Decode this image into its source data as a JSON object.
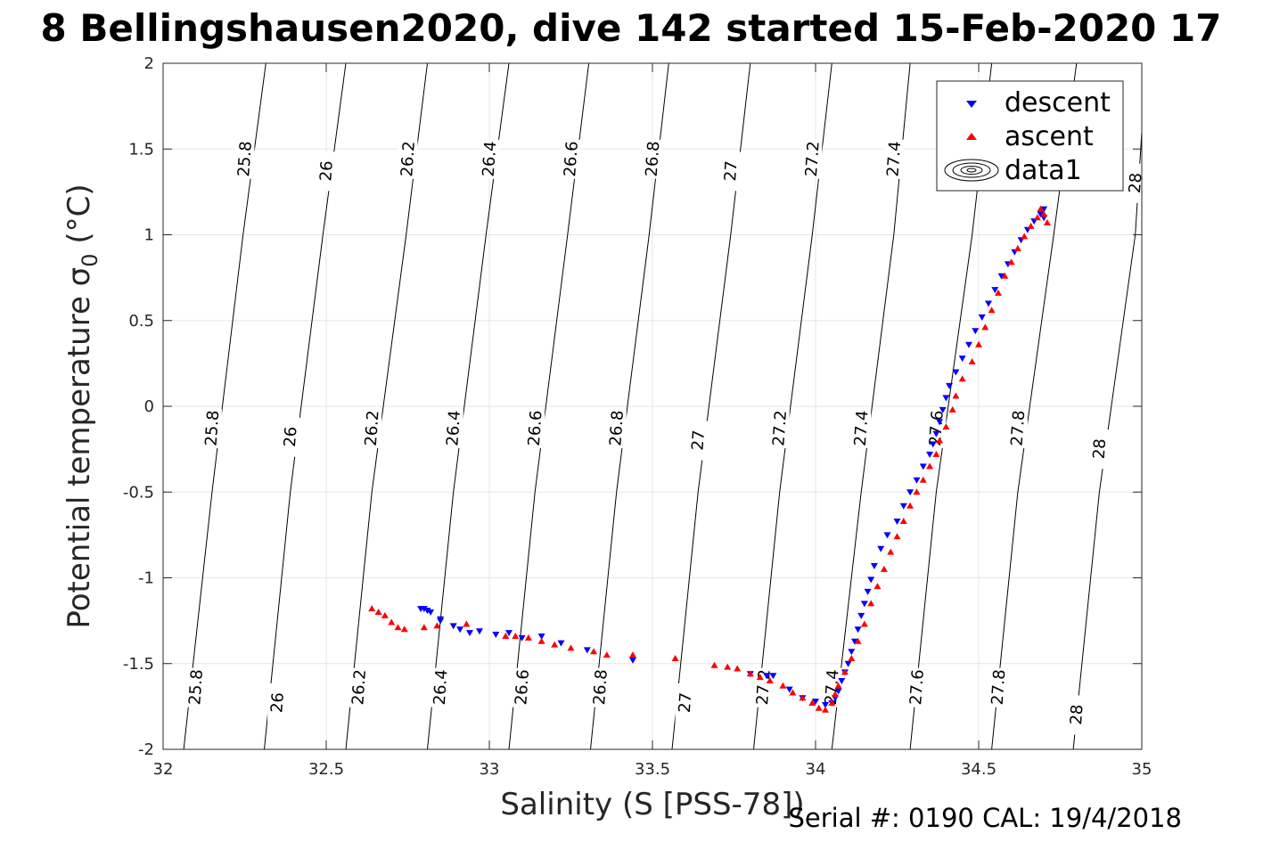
{
  "chart_data": {
    "type": "scatter",
    "title": "8 Bellingshausen2020, dive 142 started 15-Feb-2020 17",
    "xlabel": "Salinity (S [PSS-78])",
    "ylabel": "Potential temperature σ",
    "ylabel_subscript": "0",
    "ylabel_unit": " (°C)",
    "xlim": [
      32,
      35
    ],
    "ylim": [
      -2,
      2
    ],
    "x_ticks": [
      32,
      32.5,
      33,
      33.5,
      34,
      34.5,
      35
    ],
    "x_tick_labels": [
      "32",
      "32.5",
      "33",
      "33.5",
      "34",
      "34.5",
      "35"
    ],
    "y_ticks": [
      -2,
      -1.5,
      -1,
      -0.5,
      0,
      0.5,
      1,
      1.5,
      2
    ],
    "y_tick_labels": [
      "-2",
      "-1.5",
      "-1",
      "-0.5",
      "0",
      "0.5",
      "1",
      "1.5",
      "2"
    ],
    "grid": true,
    "legend_placement": "top-right",
    "legend": [
      "descent",
      "ascent",
      "data1"
    ],
    "density_contours": {
      "series_name": "data1",
      "color": "#000000",
      "levels": [
        "25.8",
        "26",
        "26.2",
        "26.4",
        "26.6",
        "26.8",
        "27",
        "27.2",
        "27.4",
        "27.6",
        "27.8",
        "28"
      ],
      "lines": [
        {
          "level": "25.8",
          "points": [
            [
              32.063,
              -2
            ],
            [
              32.15,
              -0.5
            ],
            [
              32.245,
              1.0
            ],
            [
              32.315,
              2
            ]
          ]
        },
        {
          "level": "26",
          "points": [
            [
              32.31,
              -2
            ],
            [
              32.39,
              -0.5
            ],
            [
              32.49,
              1.0
            ],
            [
              32.56,
              2
            ]
          ]
        },
        {
          "level": "26.2",
          "points": [
            [
              32.56,
              -2
            ],
            [
              32.64,
              -0.5
            ],
            [
              32.745,
              1.0
            ],
            [
              32.81,
              2
            ]
          ]
        },
        {
          "level": "26.4",
          "points": [
            [
              32.81,
              -2
            ],
            [
              32.89,
              -0.5
            ],
            [
              32.99,
              1.0
            ],
            [
              33.06,
              2
            ]
          ]
        },
        {
          "level": "26.6",
          "points": [
            [
              33.06,
              -2
            ],
            [
              33.14,
              -0.5
            ],
            [
              33.24,
              1.0
            ],
            [
              33.305,
              2
            ]
          ]
        },
        {
          "level": "26.8",
          "points": [
            [
              33.31,
              -2
            ],
            [
              33.39,
              -0.5
            ],
            [
              33.49,
              1.0
            ],
            [
              33.55,
              2
            ]
          ]
        },
        {
          "level": "27",
          "points": [
            [
              33.56,
              -2
            ],
            [
              33.64,
              -0.5
            ],
            [
              33.74,
              1.0
            ],
            [
              33.8,
              2
            ]
          ]
        },
        {
          "level": "27.2",
          "points": [
            [
              33.81,
              -2
            ],
            [
              33.89,
              -0.5
            ],
            [
              33.99,
              1.0
            ],
            [
              34.05,
              2
            ]
          ]
        },
        {
          "level": "27.4",
          "points": [
            [
              34.05,
              -2
            ],
            [
              34.14,
              -0.5
            ],
            [
              34.24,
              1.0
            ],
            [
              34.29,
              2
            ]
          ]
        },
        {
          "level": "27.6",
          "points": [
            [
              34.29,
              -2
            ],
            [
              34.37,
              -0.5
            ],
            [
              34.48,
              1.0
            ],
            [
              34.54,
              2
            ]
          ]
        },
        {
          "level": "27.8",
          "points": [
            [
              34.54,
              -2
            ],
            [
              34.62,
              -0.5
            ],
            [
              34.73,
              1.0
            ],
            [
              34.8,
              2
            ]
          ]
        },
        {
          "level": "28",
          "points": [
            [
              34.79,
              -2
            ],
            [
              34.87,
              -0.5
            ],
            [
              34.98,
              1.0
            ],
            [
              35,
              1.6
            ]
          ]
        }
      ],
      "labels": [
        {
          "text": "25.8",
          "s": 32.1,
          "t": -1.64
        },
        {
          "text": "25.8",
          "s": 32.15,
          "t": -0.13
        },
        {
          "text": "25.8",
          "s": 32.25,
          "t": 1.44
        },
        {
          "text": "26",
          "s": 32.35,
          "t": -1.73
        },
        {
          "text": "26",
          "s": 32.39,
          "t": -0.18
        },
        {
          "text": "26",
          "s": 32.5,
          "t": 1.37
        },
        {
          "text": "26.2",
          "s": 32.6,
          "t": -1.64
        },
        {
          "text": "26.2",
          "s": 32.64,
          "t": -0.13
        },
        {
          "text": "26.2",
          "s": 32.75,
          "t": 1.44
        },
        {
          "text": "26.4",
          "s": 32.85,
          "t": -1.64
        },
        {
          "text": "26.4",
          "s": 32.89,
          "t": -0.13
        },
        {
          "text": "26.4",
          "s": 33,
          "t": 1.44
        },
        {
          "text": "26.6",
          "s": 33.1,
          "t": -1.64
        },
        {
          "text": "26.6",
          "s": 33.14,
          "t": -0.13
        },
        {
          "text": "26.6",
          "s": 33.25,
          "t": 1.44
        },
        {
          "text": "26.8",
          "s": 33.34,
          "t": -1.64
        },
        {
          "text": "26.8",
          "s": 33.39,
          "t": -0.13
        },
        {
          "text": "26.8",
          "s": 33.5,
          "t": 1.44
        },
        {
          "text": "27",
          "s": 33.6,
          "t": -1.73
        },
        {
          "text": "27",
          "s": 33.64,
          "t": -0.2
        },
        {
          "text": "27",
          "s": 33.74,
          "t": 1.37
        },
        {
          "text": "27.2",
          "s": 33.84,
          "t": -1.64
        },
        {
          "text": "27.2",
          "s": 33.89,
          "t": -0.13
        },
        {
          "text": "27.2",
          "s": 33.99,
          "t": 1.44
        },
        {
          "text": "27.4",
          "s": 34.05,
          "t": -1.64
        },
        {
          "text": "27.4",
          "s": 34.14,
          "t": -0.13
        },
        {
          "text": "27.4",
          "s": 34.24,
          "t": 1.44
        },
        {
          "text": "27.6",
          "s": 34.31,
          "t": -1.64
        },
        {
          "text": "27.6",
          "s": 34.37,
          "t": -0.13
        },
        {
          "text": "27.8",
          "s": 34.56,
          "t": -1.64
        },
        {
          "text": "27.8",
          "s": 34.62,
          "t": -0.13
        },
        {
          "text": "28",
          "s": 34.8,
          "t": -1.8
        },
        {
          "text": "28",
          "s": 34.87,
          "t": -0.25
        },
        {
          "text": "28",
          "s": 34.98,
          "t": 1.3
        }
      ]
    },
    "series": [
      {
        "name": "descent",
        "marker": "triangle-down",
        "color": "#0000ff",
        "points": [
          [
            32.79,
            -1.18
          ],
          [
            32.8,
            -1.18
          ],
          [
            32.81,
            -1.19
          ],
          [
            32.82,
            -1.2
          ],
          [
            32.85,
            -1.24
          ],
          [
            32.85,
            -1.25
          ],
          [
            32.89,
            -1.28
          ],
          [
            32.91,
            -1.3
          ],
          [
            32.94,
            -1.32
          ],
          [
            32.97,
            -1.31
          ],
          [
            33.02,
            -1.33
          ],
          [
            33.06,
            -1.32
          ],
          [
            33.1,
            -1.35
          ],
          [
            33.16,
            -1.34
          ],
          [
            33.22,
            -1.38
          ],
          [
            33.3,
            -1.42
          ],
          [
            33.44,
            -1.48
          ],
          [
            33.8,
            -1.56
          ],
          [
            33.85,
            -1.57
          ],
          [
            33.87,
            -1.57
          ],
          [
            33.92,
            -1.65
          ],
          [
            33.96,
            -1.7
          ],
          [
            34.0,
            -1.72
          ],
          [
            34.03,
            -1.74
          ],
          [
            34.05,
            -1.73
          ],
          [
            34.06,
            -1.7
          ],
          [
            34.07,
            -1.66
          ],
          [
            34.08,
            -1.6
          ],
          [
            34.09,
            -1.55
          ],
          [
            34.1,
            -1.5
          ],
          [
            34.11,
            -1.43
          ],
          [
            34.12,
            -1.37
          ],
          [
            34.13,
            -1.3
          ],
          [
            34.14,
            -1.22
          ],
          [
            34.15,
            -1.15
          ],
          [
            34.16,
            -1.08
          ],
          [
            34.17,
            -1.01
          ],
          [
            34.18,
            -0.93
          ],
          [
            34.2,
            -0.83
          ],
          [
            34.22,
            -0.75
          ],
          [
            34.25,
            -0.67
          ],
          [
            34.27,
            -0.58
          ],
          [
            34.29,
            -0.5
          ],
          [
            34.31,
            -0.43
          ],
          [
            34.33,
            -0.35
          ],
          [
            34.35,
            -0.28
          ],
          [
            34.36,
            -0.22
          ],
          [
            34.37,
            -0.16
          ],
          [
            34.38,
            -0.09
          ],
          [
            34.39,
            -0.02
          ],
          [
            34.4,
            0.05
          ],
          [
            34.41,
            0.12
          ],
          [
            34.43,
            0.2
          ],
          [
            34.45,
            0.28
          ],
          [
            34.47,
            0.36
          ],
          [
            34.49,
            0.44
          ],
          [
            34.51,
            0.52
          ],
          [
            34.53,
            0.6
          ],
          [
            34.55,
            0.68
          ],
          [
            34.57,
            0.76
          ],
          [
            34.59,
            0.83
          ],
          [
            34.61,
            0.9
          ],
          [
            34.63,
            0.97
          ],
          [
            34.65,
            1.03
          ],
          [
            34.67,
            1.08
          ],
          [
            34.69,
            1.12
          ],
          [
            34.7,
            1.15
          ],
          [
            34.7,
            1.1
          ]
        ]
      },
      {
        "name": "ascent",
        "marker": "triangle-up",
        "color": "#ff0000",
        "points": [
          [
            32.64,
            -1.18
          ],
          [
            32.66,
            -1.2
          ],
          [
            32.68,
            -1.22
          ],
          [
            32.7,
            -1.26
          ],
          [
            32.72,
            -1.29
          ],
          [
            32.74,
            -1.3
          ],
          [
            32.8,
            -1.29
          ],
          [
            32.84,
            -1.28
          ],
          [
            32.93,
            -1.27
          ],
          [
            33.05,
            -1.34
          ],
          [
            33.08,
            -1.34
          ],
          [
            33.12,
            -1.35
          ],
          [
            33.16,
            -1.37
          ],
          [
            33.2,
            -1.39
          ],
          [
            33.25,
            -1.41
          ],
          [
            33.32,
            -1.43
          ],
          [
            33.36,
            -1.45
          ],
          [
            33.44,
            -1.45
          ],
          [
            33.57,
            -1.47
          ],
          [
            33.69,
            -1.51
          ],
          [
            33.73,
            -1.52
          ],
          [
            33.76,
            -1.53
          ],
          [
            33.8,
            -1.56
          ],
          [
            33.83,
            -1.58
          ],
          [
            33.86,
            -1.6
          ],
          [
            33.9,
            -1.63
          ],
          [
            33.93,
            -1.67
          ],
          [
            33.96,
            -1.7
          ],
          [
            33.99,
            -1.73
          ],
          [
            34.01,
            -1.76
          ],
          [
            34.03,
            -1.77
          ],
          [
            34.05,
            -1.73
          ],
          [
            34.06,
            -1.68
          ],
          [
            34.07,
            -1.63
          ],
          [
            34.09,
            -1.55
          ],
          [
            34.11,
            -1.47
          ],
          [
            34.13,
            -1.37
          ],
          [
            34.15,
            -1.27
          ],
          [
            34.17,
            -1.15
          ],
          [
            34.19,
            -1.05
          ],
          [
            34.21,
            -0.95
          ],
          [
            34.23,
            -0.85
          ],
          [
            34.25,
            -0.76
          ],
          [
            34.27,
            -0.67
          ],
          [
            34.29,
            -0.58
          ],
          [
            34.31,
            -0.5
          ],
          [
            34.33,
            -0.43
          ],
          [
            34.35,
            -0.35
          ],
          [
            34.37,
            -0.28
          ],
          [
            34.38,
            -0.2
          ],
          [
            34.4,
            -0.12
          ],
          [
            34.42,
            -0.02
          ],
          [
            34.43,
            0.06
          ],
          [
            34.45,
            0.16
          ],
          [
            34.48,
            0.26
          ],
          [
            34.5,
            0.36
          ],
          [
            34.52,
            0.46
          ],
          [
            34.54,
            0.56
          ],
          [
            34.56,
            0.66
          ],
          [
            34.58,
            0.76
          ],
          [
            34.6,
            0.84
          ],
          [
            34.62,
            0.92
          ],
          [
            34.64,
            0.99
          ],
          [
            34.66,
            1.05
          ],
          [
            34.68,
            1.1
          ],
          [
            34.69,
            1.15
          ],
          [
            34.7,
            1.12
          ],
          [
            34.71,
            1.07
          ]
        ]
      }
    ]
  },
  "footer": {
    "serial_text": "Serial #: 0190  CAL: 19/4/2018"
  }
}
